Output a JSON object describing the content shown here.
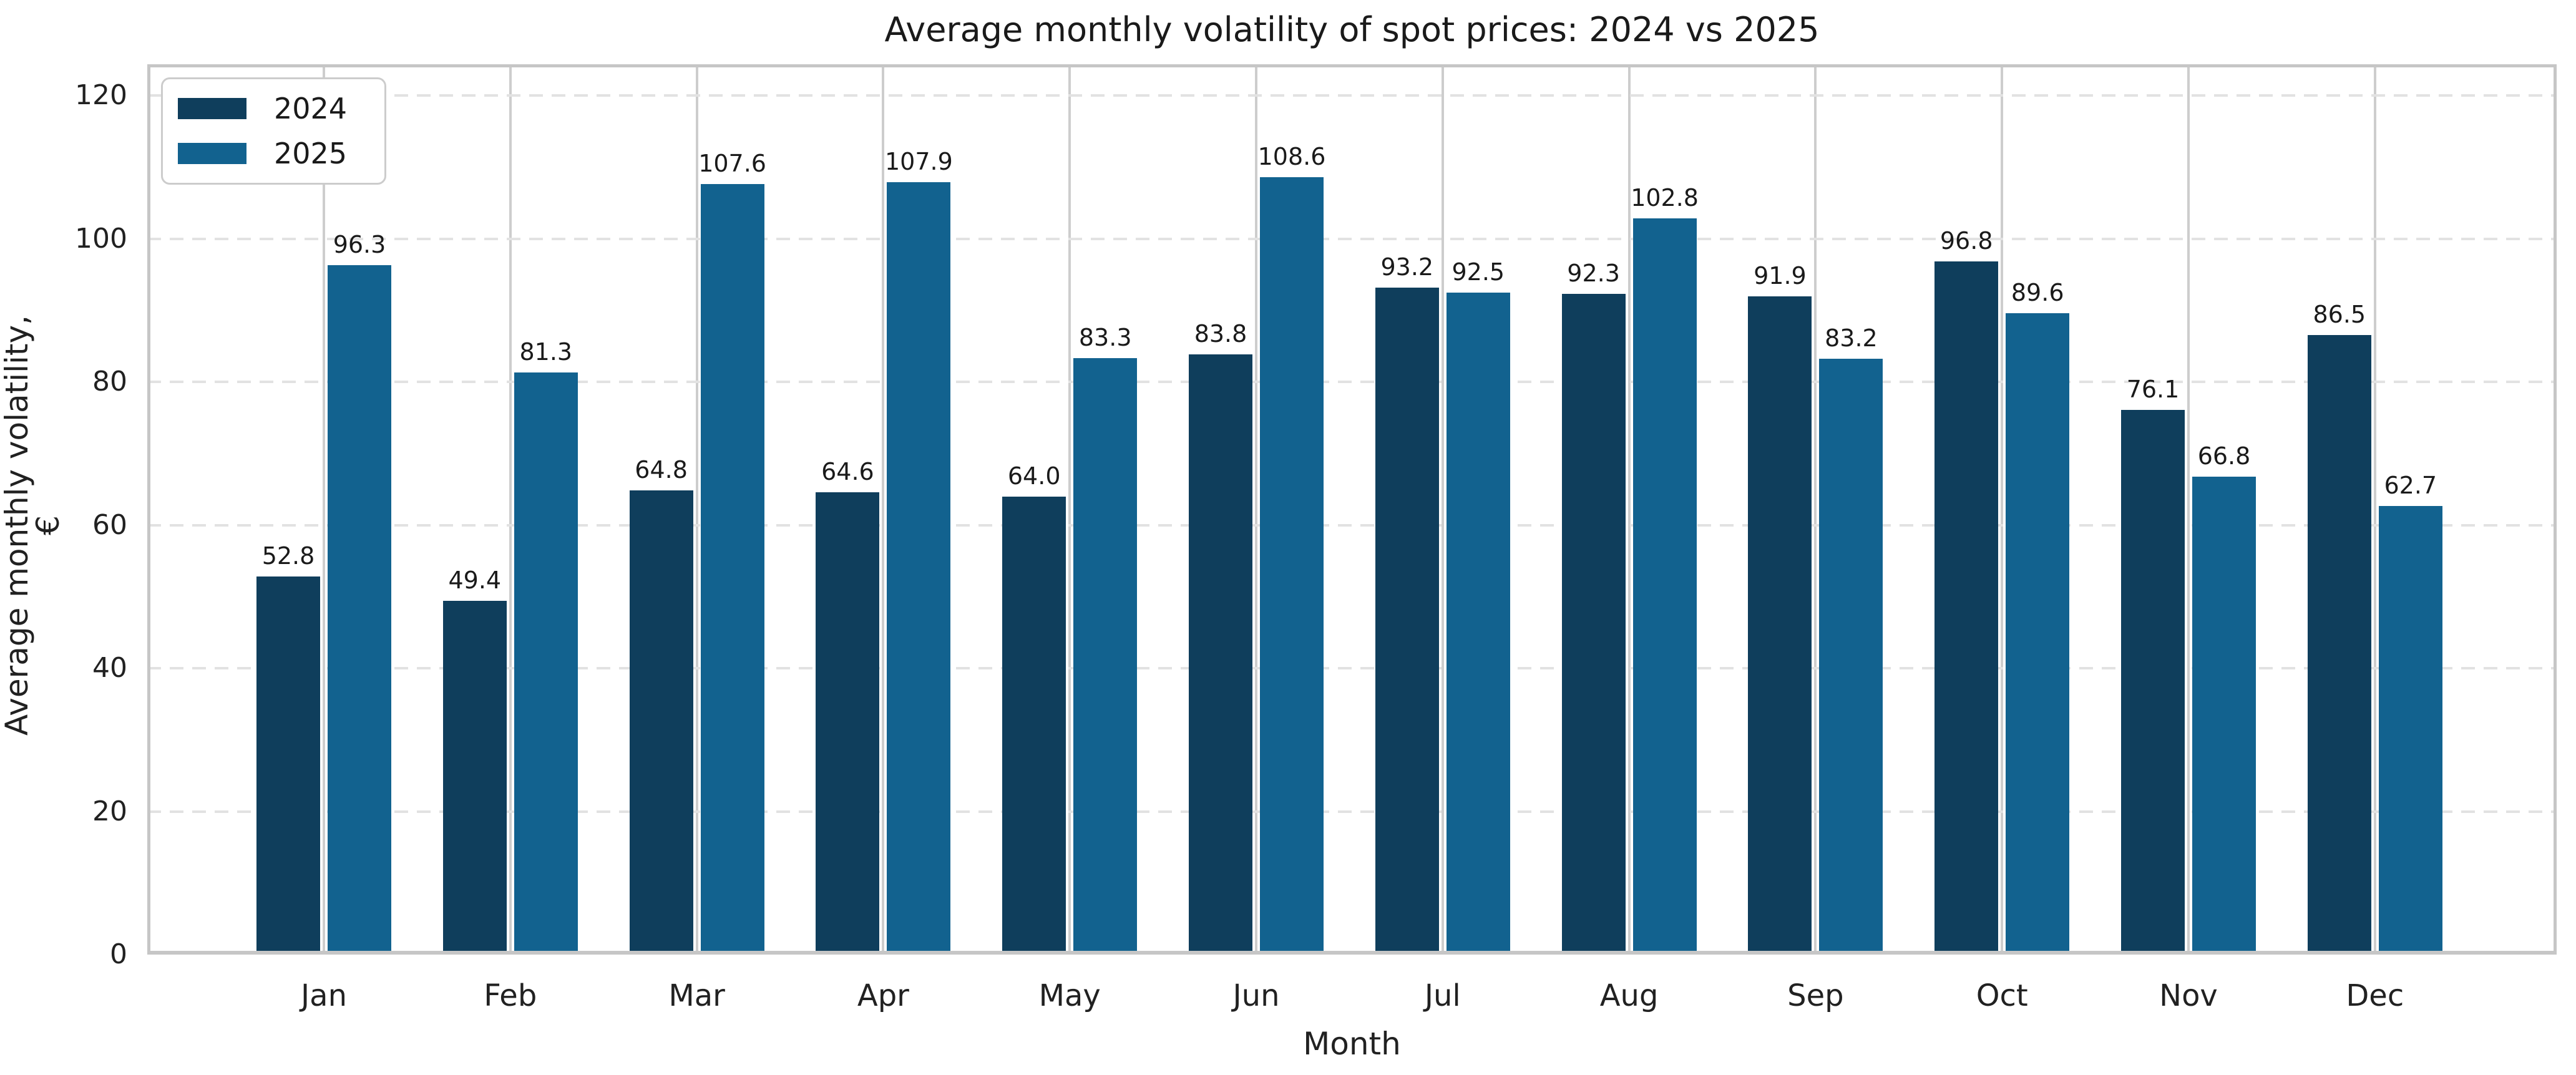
{
  "chart_data": {
    "type": "bar",
    "title": "Average monthly volatility of spot prices: 2024 vs 2025",
    "xlabel": "Month",
    "ylabel": "Average monthly volatility, €",
    "categories": [
      "Jan",
      "Feb",
      "Mar",
      "Apr",
      "May",
      "Jun",
      "Jul",
      "Aug",
      "Sep",
      "Oct",
      "Nov",
      "Dec"
    ],
    "series": [
      {
        "name": "2024",
        "color": "#0f3e5c",
        "values": [
          52.8,
          49.4,
          64.8,
          64.6,
          64.0,
          83.8,
          93.2,
          92.3,
          91.9,
          96.8,
          76.1,
          86.5
        ]
      },
      {
        "name": "2025",
        "color": "#12628f",
        "values": [
          96.3,
          81.3,
          107.6,
          107.9,
          83.3,
          108.6,
          92.5,
          102.8,
          83.2,
          89.6,
          66.8,
          62.7
        ]
      }
    ],
    "value_labels_decimals": 1,
    "yticks": [
      0,
      20,
      40,
      60,
      80,
      100,
      120
    ],
    "ylim": [
      0,
      124.4
    ],
    "grid": true,
    "legend_position": "upper left",
    "colors": {
      "grid_vertical": "#cdcdcd",
      "grid_horizontal_dashed": "#e2e2e2",
      "spine": "#c6c6c6",
      "text": "#212121",
      "background": "#ffffff"
    }
  }
}
